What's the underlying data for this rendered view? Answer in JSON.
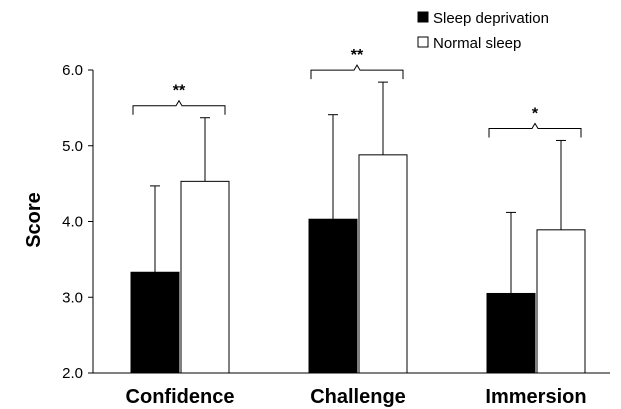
{
  "chart_data": {
    "type": "bar",
    "categories": [
      "Confidence",
      "Challenge",
      "Immersion"
    ],
    "series": [
      {
        "name": "Sleep deprivation",
        "values": [
          3.33,
          4.03,
          3.05
        ],
        "errors": [
          1.14,
          1.38,
          1.07
        ],
        "color": "#000000"
      },
      {
        "name": "Normal sleep",
        "values": [
          4.53,
          4.88,
          3.89
        ],
        "errors": [
          0.84,
          0.96,
          1.18
        ],
        "color": "#ffffff"
      }
    ],
    "significance": [
      "**",
      "**",
      "*"
    ],
    "ylabel": "Score",
    "xlabel": "",
    "ylim": [
      2.0,
      6.0
    ],
    "yticks": [
      "2.0",
      "3.0",
      "4.0",
      "5.0",
      "6.0"
    ],
    "legend_position": "top-right",
    "grid": false
  }
}
